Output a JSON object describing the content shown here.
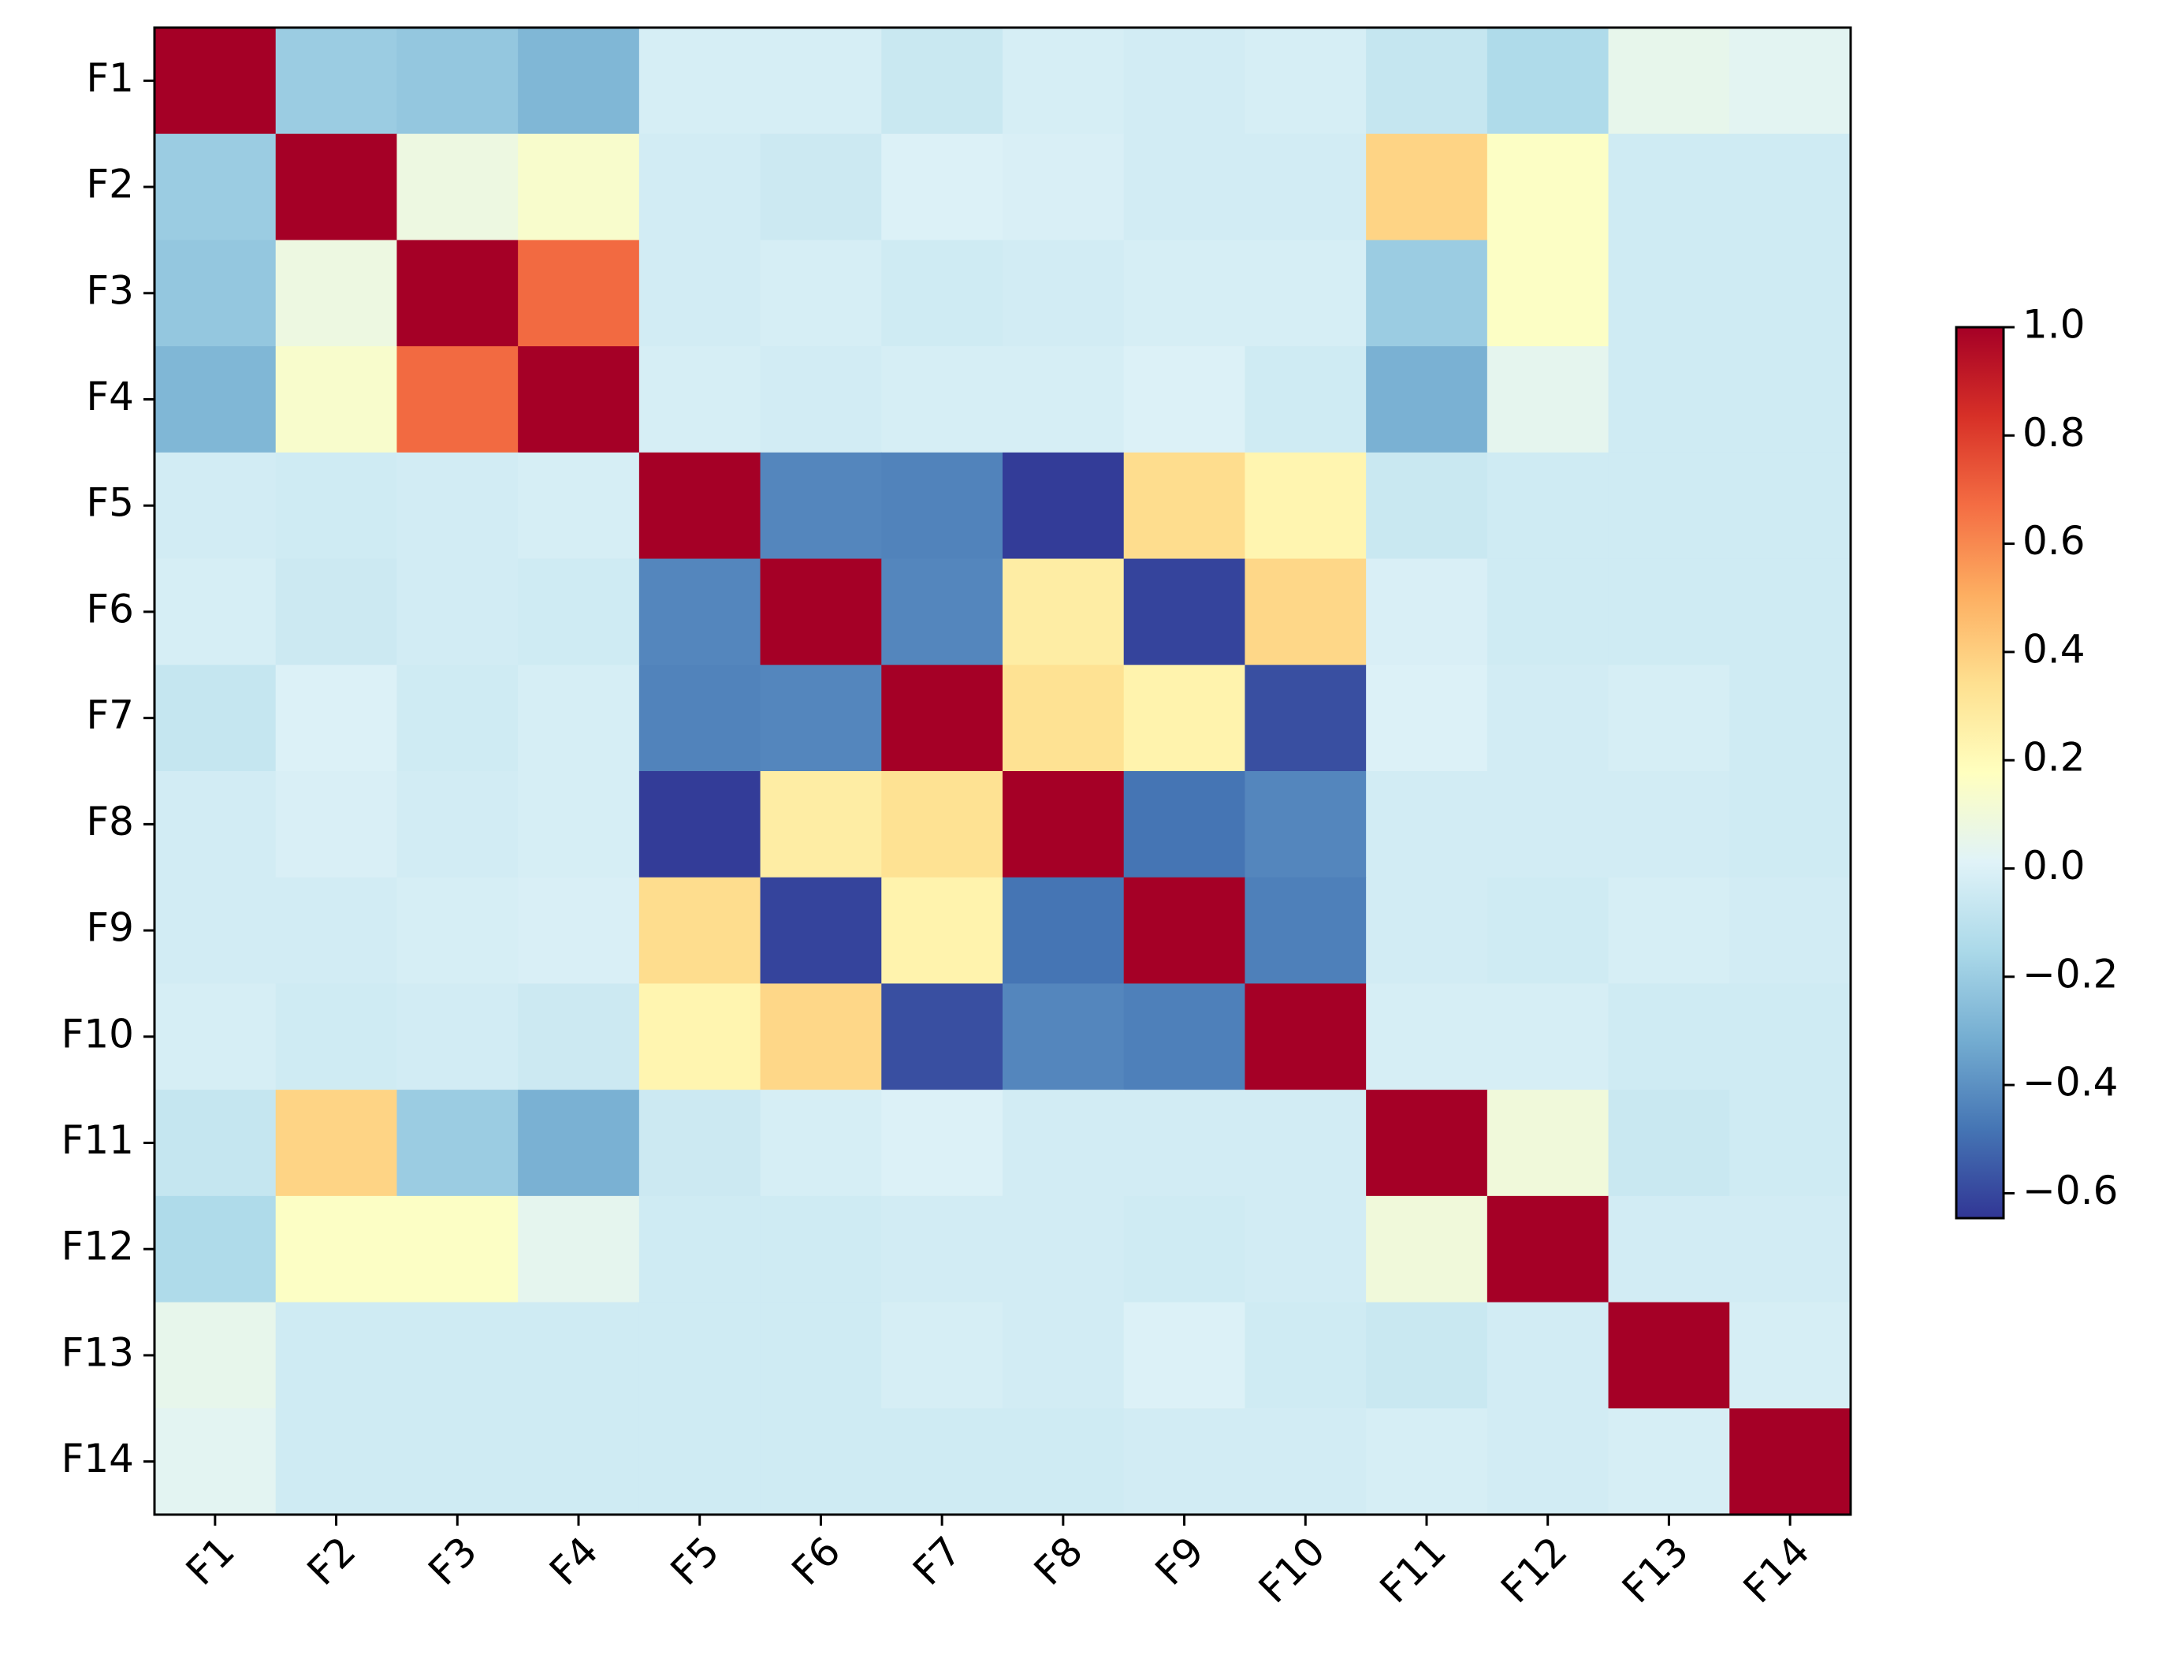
{
  "chart_data": {
    "type": "heatmap",
    "categories": [
      "F1",
      "F2",
      "F3",
      "F4",
      "F5",
      "F6",
      "F7",
      "F8",
      "F9",
      "F10",
      "F11",
      "F12",
      "F13",
      "F14"
    ],
    "values": [
      [
        1,
        -0.2,
        -0.22,
        -0.28,
        -0.02,
        -0.02,
        -0.06,
        -0.02,
        -0.03,
        -0.02,
        -0.07,
        -0.14,
        0.05,
        0.03
      ],
      [
        -0.2,
        1,
        0.08,
        0.14,
        -0.03,
        -0.05,
        0.0,
        -0.01,
        -0.03,
        -0.03,
        0.38,
        0.16,
        -0.04,
        -0.04
      ],
      [
        -0.22,
        0.08,
        1,
        0.68,
        -0.03,
        -0.02,
        -0.04,
        -0.03,
        -0.02,
        -0.02,
        -0.2,
        0.16,
        -0.04,
        -0.04
      ],
      [
        -0.28,
        0.14,
        0.68,
        1,
        -0.02,
        -0.03,
        -0.02,
        -0.02,
        0.0,
        -0.04,
        -0.3,
        0.04,
        -0.04,
        -0.04
      ],
      [
        -0.03,
        -0.04,
        -0.03,
        -0.02,
        1,
        -0.43,
        -0.44,
        -0.63,
        0.35,
        0.23,
        -0.06,
        -0.04,
        -0.04,
        -0.04
      ],
      [
        -0.02,
        -0.05,
        -0.03,
        -0.04,
        -0.43,
        1,
        -0.43,
        0.27,
        -0.61,
        0.37,
        -0.01,
        -0.04,
        -0.04,
        -0.04
      ],
      [
        -0.07,
        0.0,
        -0.04,
        -0.02,
        -0.44,
        -0.43,
        1,
        0.33,
        0.24,
        -0.58,
        0.0,
        -0.03,
        -0.02,
        -0.04
      ],
      [
        -0.03,
        -0.01,
        -0.03,
        -0.02,
        -0.63,
        0.27,
        0.33,
        1,
        -0.48,
        -0.43,
        -0.03,
        -0.03,
        -0.03,
        -0.04
      ],
      [
        -0.03,
        -0.03,
        -0.02,
        -0.01,
        0.35,
        -0.61,
        0.24,
        -0.48,
        1,
        -0.45,
        -0.03,
        -0.04,
        -0.02,
        -0.03
      ],
      [
        -0.02,
        -0.04,
        -0.03,
        -0.05,
        0.23,
        0.37,
        -0.58,
        -0.43,
        -0.45,
        1,
        -0.02,
        -0.02,
        -0.04,
        -0.04
      ],
      [
        -0.07,
        0.38,
        -0.2,
        -0.3,
        -0.05,
        -0.02,
        0.0,
        -0.03,
        -0.03,
        -0.03,
        1,
        0.1,
        -0.06,
        -0.04
      ],
      [
        -0.14,
        0.16,
        0.16,
        0.04,
        -0.04,
        -0.04,
        -0.03,
        -0.03,
        -0.04,
        -0.03,
        0.1,
        1,
        -0.03,
        -0.03
      ],
      [
        0.05,
        -0.04,
        -0.04,
        -0.04,
        -0.04,
        -0.04,
        -0.02,
        -0.03,
        0.0,
        -0.04,
        -0.06,
        -0.03,
        1,
        -0.02
      ],
      [
        0.03,
        -0.04,
        -0.04,
        -0.04,
        -0.04,
        -0.04,
        -0.04,
        -0.04,
        -0.03,
        -0.03,
        -0.02,
        -0.03,
        -0.02,
        1
      ]
    ],
    "colormap": [
      "#313695",
      "#4575b4",
      "#74add1",
      "#abd9e9",
      "#e0f3f8",
      "#ffffbf",
      "#fee090",
      "#fdae61",
      "#f46d43",
      "#d73027",
      "#a50026"
    ],
    "zlim": [
      -0.646,
      1.0
    ],
    "zticks": [
      {
        "value": 1.0,
        "label": "1.0"
      },
      0.8,
      0.6,
      0.4,
      0.2,
      {
        "value": 0.0,
        "label": "0.0"
      },
      {
        "value": -0.2,
        "label": "−0.2"
      },
      {
        "value": -0.4,
        "label": "−0.4"
      },
      {
        "value": -0.6,
        "label": "−0.6"
      }
    ]
  }
}
